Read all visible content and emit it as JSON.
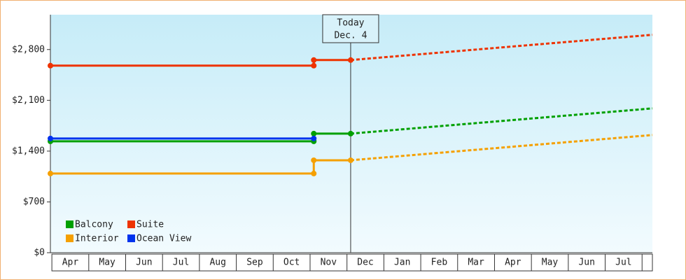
{
  "chart_data": {
    "type": "line",
    "categories": [
      "Apr",
      "May",
      "Jun",
      "Jul",
      "Aug",
      "Sep",
      "Oct",
      "Nov",
      "Dec",
      "Jan",
      "Feb",
      "Mar",
      "Apr",
      "May",
      "Jun",
      "Jul"
    ],
    "xlim": [
      -0.04,
      16.28
    ],
    "ylim": [
      0,
      3280
    ],
    "yticks": [
      {
        "value": 0,
        "label": "$0"
      },
      {
        "value": 700,
        "label": "$700"
      },
      {
        "value": 1400,
        "label": "$1,400"
      },
      {
        "value": 2100,
        "label": "$2,100"
      },
      {
        "value": 2800,
        "label": "$2,800"
      }
    ],
    "today": {
      "x": 8.1,
      "label": "Today",
      "date": "Dec. 4"
    },
    "series": [
      {
        "name": "Balcony",
        "color": "#00a000",
        "x": [
          -0.04,
          7.1,
          7.1,
          8.1,
          16.28
        ],
        "values": [
          1535,
          1535,
          1641,
          1641,
          1989
        ]
      },
      {
        "name": "Suite",
        "color": "#ee3300",
        "x": [
          -0.04,
          7.1,
          7.1,
          8.1,
          16.28
        ],
        "values": [
          2578,
          2578,
          2655,
          2655,
          3003
        ]
      },
      {
        "name": "Interior",
        "color": "#f5a000",
        "x": [
          -0.04,
          7.1,
          7.1,
          8.1,
          16.28
        ],
        "values": [
          1091,
          1091,
          1274,
          1274,
          1622
        ]
      },
      {
        "name": "Ocean View",
        "color": "#0033ee",
        "x": [
          -0.04,
          7.1
        ],
        "values": [
          1574,
          1574
        ]
      }
    ]
  }
}
